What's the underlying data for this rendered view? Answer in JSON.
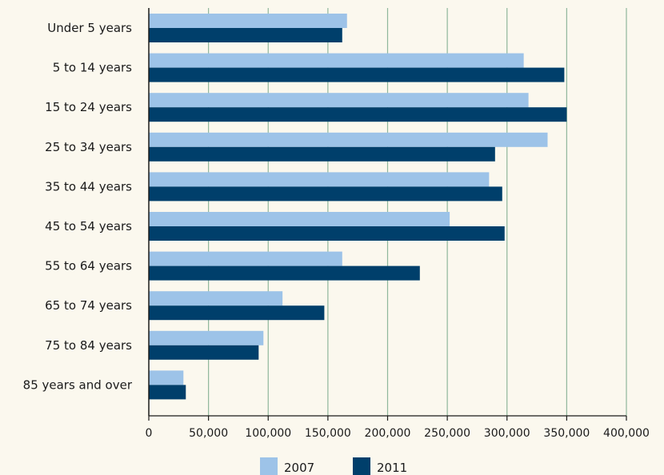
{
  "chart_data": {
    "type": "bar",
    "orientation": "horizontal",
    "categories": [
      "Under 5 years",
      "5 to 14 years",
      "15 to 24 years",
      "25 to 34 years",
      "35 to 44 years",
      "45 to 54 years",
      "55 to 64 years",
      "65 to 74 years",
      "75 to 84 years",
      "85 years and over"
    ],
    "series": [
      {
        "name": "2007",
        "color": "#9dc3e8",
        "values": [
          166000,
          314000,
          318000,
          334000,
          285000,
          252000,
          162000,
          112000,
          96000,
          29000
        ]
      },
      {
        "name": "2011",
        "color": "#003f6b",
        "values": [
          162000,
          348000,
          350000,
          290000,
          296000,
          298000,
          227000,
          147000,
          92000,
          31000
        ]
      }
    ],
    "xlim": [
      0,
      400000
    ],
    "xticks": [
      0,
      50000,
      100000,
      150000,
      200000,
      250000,
      300000,
      350000,
      400000
    ],
    "xtick_labels": [
      "0",
      "50,000",
      "100,000",
      "150,000",
      "200,000",
      "250,000",
      "300,000",
      "350,000",
      "400,000"
    ],
    "grid": "vertical",
    "grid_color": "#8fb79b",
    "legend_position": "bottom-center",
    "title": "",
    "xlabel": "",
    "ylabel": ""
  }
}
